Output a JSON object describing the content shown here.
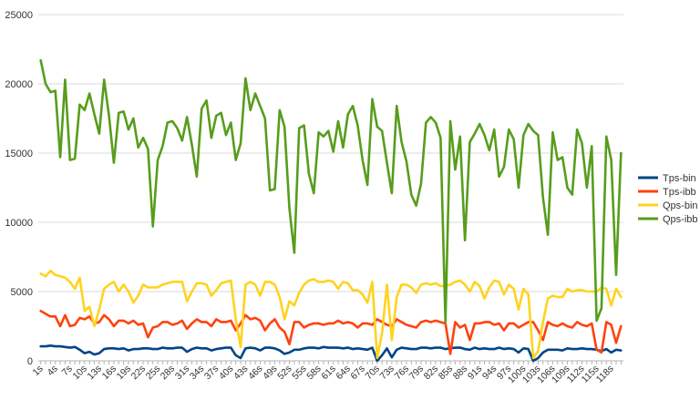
{
  "chart_data": {
    "type": "line",
    "title": "",
    "xlabel": "",
    "ylabel": "",
    "ylim": [
      0,
      25000
    ],
    "yticks": [
      0,
      5000,
      10000,
      15000,
      20000,
      25000
    ],
    "grid": "horizontal",
    "legend_position": "right",
    "x": [
      "1s",
      "2s",
      "3s",
      "4s",
      "5s",
      "6s",
      "7s",
      "8s",
      "9s",
      "10s",
      "11s",
      "12s",
      "13s",
      "14s",
      "15s",
      "16s",
      "17s",
      "18s",
      "19s",
      "20s",
      "21s",
      "22s",
      "23s",
      "24s",
      "25s",
      "26s",
      "27s",
      "28s",
      "29s",
      "30s",
      "31s",
      "32s",
      "33s",
      "34s",
      "35s",
      "36s",
      "37s",
      "38s",
      "39s",
      "40s",
      "41s",
      "42s",
      "43s",
      "44s",
      "45s",
      "46s",
      "47s",
      "48s",
      "49s",
      "50s",
      "51s",
      "52s",
      "53s",
      "54s",
      "55s",
      "56s",
      "57s",
      "58s",
      "59s",
      "60s",
      "61s",
      "62s",
      "63s",
      "64s",
      "65s",
      "66s",
      "67s",
      "68s",
      "69s",
      "70s",
      "71s",
      "72s",
      "73s",
      "74s",
      "75s",
      "76s",
      "77s",
      "78s",
      "79s",
      "80s",
      "81s",
      "82s",
      "83s",
      "84s",
      "85s",
      "86s",
      "87s",
      "88s",
      "89s",
      "90s",
      "91s",
      "92s",
      "93s",
      "94s",
      "95s",
      "96s",
      "97s",
      "98s",
      "99s",
      "100s",
      "101s",
      "102s",
      "103s",
      "104s",
      "105s",
      "106s",
      "107s",
      "108s",
      "109s",
      "110s",
      "111s",
      "112s",
      "113s",
      "114s",
      "115s",
      "116s",
      "117s",
      "118s",
      "119s",
      "120s"
    ],
    "x_tick_labels": [
      "1s",
      "4s",
      "7s",
      "10s",
      "13s",
      "16s",
      "19s",
      "22s",
      "25s",
      "28s",
      "31s",
      "34s",
      "37s",
      "40s",
      "43s",
      "46s",
      "49s",
      "52s",
      "55s",
      "58s",
      "61s",
      "64s",
      "67s",
      "70s",
      "73s",
      "76s",
      "79s",
      "82s",
      "85s",
      "88s",
      "91s",
      "94s",
      "97s",
      "100s",
      "103s",
      "106s",
      "109s",
      "112s",
      "115s",
      "118s"
    ],
    "series": [
      {
        "name": "Tps-bin",
        "color": "#004586",
        "values": [
          1050,
          1050,
          1100,
          1050,
          1050,
          1000,
          950,
          1000,
          800,
          550,
          650,
          450,
          550,
          850,
          900,
          900,
          850,
          900,
          750,
          850,
          850,
          900,
          900,
          850,
          850,
          950,
          900,
          900,
          950,
          950,
          650,
          850,
          950,
          900,
          900,
          750,
          850,
          900,
          950,
          950,
          400,
          200,
          900,
          950,
          900,
          750,
          950,
          950,
          900,
          750,
          500,
          600,
          800,
          800,
          900,
          950,
          950,
          900,
          1000,
          950,
          950,
          950,
          900,
          950,
          850,
          900,
          850,
          800,
          950,
          0,
          400,
          900,
          250,
          800,
          950,
          900,
          850,
          850,
          950,
          950,
          900,
          950,
          950,
          850,
          900,
          950,
          950,
          850,
          800,
          950,
          850,
          900,
          850,
          850,
          950,
          850,
          900,
          850,
          600,
          900,
          850,
          0,
          200,
          600,
          800,
          800,
          800,
          750,
          900,
          850,
          850,
          900,
          850,
          850,
          800,
          700,
          850,
          600,
          800,
          750
        ]
      },
      {
        "name": "Tps-ibb",
        "color": "#ff420e",
        "values": [
          3600,
          3400,
          3200,
          3200,
          2500,
          3300,
          2500,
          2600,
          3100,
          3000,
          3200,
          2700,
          2800,
          3300,
          3000,
          2500,
          2900,
          2900,
          2700,
          2900,
          2600,
          2700,
          1700,
          2400,
          2500,
          2800,
          2800,
          2600,
          2700,
          2900,
          2300,
          2700,
          3000,
          2800,
          2800,
          2500,
          3000,
          2800,
          2800,
          2900,
          2200,
          2700,
          3300,
          3000,
          3100,
          2900,
          2200,
          2700,
          3000,
          2400,
          2100,
          1200,
          2800,
          2800,
          2400,
          2600,
          2700,
          2700,
          2600,
          2700,
          2700,
          2900,
          2700,
          2800,
          2700,
          2400,
          2700,
          2700,
          2600,
          3000,
          2800,
          2600,
          2500,
          3000,
          2800,
          2600,
          2500,
          2400,
          2800,
          2900,
          2800,
          2900,
          2800,
          2700,
          500,
          2800,
          2400,
          2600,
          1500,
          2700,
          2700,
          2800,
          2800,
          2600,
          2700,
          2200,
          2700,
          2700,
          2400,
          2600,
          2800,
          2800,
          2200,
          1500,
          2800,
          2600,
          2500,
          2700,
          2500,
          2400,
          2800,
          2600,
          2500,
          2700,
          800,
          600,
          2800,
          2600,
          1300,
          2500
        ]
      },
      {
        "name": "Qps-bin",
        "color": "#ffd320",
        "values": [
          6300,
          6100,
          6500,
          6200,
          6100,
          6000,
          5700,
          5200,
          6000,
          3600,
          3900,
          2500,
          3700,
          5200,
          5500,
          5700,
          5000,
          5500,
          5000,
          4200,
          4700,
          5500,
          5300,
          5300,
          5300,
          5500,
          5600,
          5700,
          5700,
          5700,
          4300,
          5000,
          5600,
          5600,
          5500,
          4700,
          5100,
          5600,
          5700,
          5800,
          3000,
          1000,
          5500,
          5700,
          5500,
          4700,
          5700,
          5700,
          5500,
          4600,
          3000,
          4300,
          4000,
          4900,
          5500,
          5800,
          5900,
          5700,
          5700,
          5800,
          5700,
          5200,
          5700,
          5600,
          5100,
          5100,
          4800,
          4200,
          5700,
          200,
          2000,
          5500,
          1500,
          4600,
          5500,
          5500,
          5300,
          4900,
          5500,
          5600,
          5500,
          5600,
          5400,
          5400,
          5500,
          5700,
          5800,
          5500,
          5000,
          5700,
          5400,
          4500,
          5300,
          5800,
          5700,
          4800,
          5500,
          5200,
          3700,
          5200,
          4800,
          200,
          700,
          2800,
          4500,
          4700,
          4600,
          4600,
          5200,
          5000,
          5100,
          5100,
          5000,
          5000,
          5000,
          5300,
          5200,
          4000,
          5200,
          4600
        ]
      },
      {
        "name": "Qps-ibb",
        "color": "#579d1c",
        "values": [
          21700,
          20000,
          19400,
          19500,
          14700,
          20300,
          14500,
          14600,
          18500,
          18100,
          19300,
          17800,
          16400,
          20300,
          17700,
          14300,
          17900,
          18000,
          16700,
          17500,
          15400,
          16100,
          15300,
          9700,
          14500,
          15500,
          17200,
          17300,
          16800,
          15900,
          17600,
          15600,
          13300,
          18200,
          18800,
          16100,
          17700,
          17900,
          16300,
          17200,
          14500,
          15700,
          20400,
          18100,
          19300,
          18400,
          17500,
          12300,
          12400,
          18100,
          16900,
          11000,
          7800,
          16800,
          17000,
          13500,
          12100,
          16500,
          16200,
          16600,
          15100,
          17300,
          15400,
          17800,
          18400,
          17000,
          14500,
          12700,
          18900,
          16900,
          16600,
          14300,
          12100,
          18400,
          15800,
          14400,
          12000,
          11200,
          12800,
          17200,
          17600,
          17200,
          16100,
          2800,
          17300,
          13800,
          16200,
          8700,
          15800,
          16400,
          17100,
          16300,
          15200,
          16700,
          13300,
          14000,
          16700,
          16000,
          12500,
          16300,
          17100,
          16600,
          16300,
          11800,
          9100,
          16500,
          14500,
          14700,
          12500,
          12000,
          16700,
          15700,
          12500,
          15500,
          2900,
          3800,
          16200,
          14500,
          6200,
          15000
        ]
      }
    ]
  }
}
